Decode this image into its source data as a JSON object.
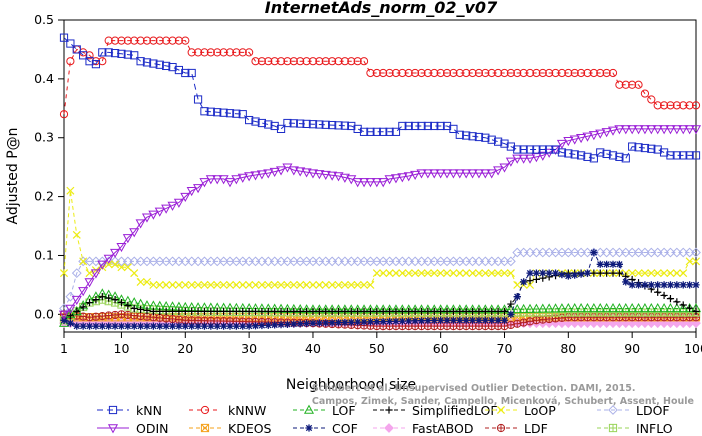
{
  "chart_data": {
    "type": "line",
    "title": "InternetAds_norm_02_v07",
    "xlabel": "Neighborhood size",
    "ylabel": "Adjusted P@n",
    "xlim": [
      1,
      100
    ],
    "ylim": [
      -0.03,
      0.5
    ],
    "xticks": [
      1,
      10,
      20,
      30,
      40,
      50,
      60,
      70,
      80,
      90,
      100
    ],
    "yticks": [
      0.0,
      0.1,
      0.2,
      0.3,
      0.4,
      0.5
    ],
    "grid": false,
    "legend_position": "bottom",
    "series": [
      {
        "name": "kNN",
        "color": "#1c2bc7",
        "marker": "square",
        "dash": "6,4",
        "points": [
          [
            1,
            0.47
          ],
          [
            2,
            0.46
          ],
          [
            3,
            0.45
          ],
          [
            4,
            0.44
          ],
          [
            5,
            0.43
          ],
          [
            6,
            0.425
          ],
          [
            7,
            0.445
          ],
          [
            8,
            0.445
          ],
          [
            12,
            0.44
          ],
          [
            13,
            0.43
          ],
          [
            18,
            0.42
          ],
          [
            19,
            0.415
          ],
          [
            20,
            0.41
          ],
          [
            21,
            0.41
          ],
          [
            22,
            0.365
          ],
          [
            23,
            0.345
          ],
          [
            29,
            0.34
          ],
          [
            30,
            0.33
          ],
          [
            32,
            0.325
          ],
          [
            34,
            0.32
          ],
          [
            35,
            0.315
          ],
          [
            36,
            0.325
          ],
          [
            46,
            0.32
          ],
          [
            47,
            0.315
          ],
          [
            48,
            0.31
          ],
          [
            53,
            0.31
          ],
          [
            54,
            0.32
          ],
          [
            61,
            0.32
          ],
          [
            62,
            0.315
          ],
          [
            63,
            0.305
          ],
          [
            67,
            0.3
          ],
          [
            70,
            0.29
          ],
          [
            72,
            0.28
          ],
          [
            78,
            0.28
          ],
          [
            79,
            0.275
          ],
          [
            82,
            0.27
          ],
          [
            84,
            0.265
          ],
          [
            85,
            0.275
          ],
          [
            87,
            0.27
          ],
          [
            89,
            0.265
          ],
          [
            90,
            0.285
          ],
          [
            94,
            0.28
          ],
          [
            96,
            0.27
          ],
          [
            100,
            0.27
          ]
        ]
      },
      {
        "name": "kNNW",
        "color": "#e8191c",
        "marker": "circle",
        "dash": "4,4",
        "points": [
          [
            1,
            0.34
          ],
          [
            2,
            0.43
          ],
          [
            3,
            0.45
          ],
          [
            4,
            0.445
          ],
          [
            5,
            0.44
          ],
          [
            6,
            0.43
          ],
          [
            7,
            0.43
          ],
          [
            8,
            0.465
          ],
          [
            20,
            0.465
          ],
          [
            21,
            0.445
          ],
          [
            30,
            0.445
          ],
          [
            31,
            0.43
          ],
          [
            48,
            0.43
          ],
          [
            49,
            0.41
          ],
          [
            87,
            0.41
          ],
          [
            88,
            0.39
          ],
          [
            91,
            0.39
          ],
          [
            92,
            0.375
          ],
          [
            94,
            0.355
          ],
          [
            100,
            0.355
          ]
        ]
      },
      {
        "name": "LOF",
        "color": "#22b222",
        "marker": "triangle-up",
        "dash": "4,3",
        "points": [
          [
            1,
            -0.015
          ],
          [
            2,
            0.0
          ],
          [
            3,
            0.005
          ],
          [
            4,
            0.015
          ],
          [
            5,
            0.025
          ],
          [
            6,
            0.03
          ],
          [
            7,
            0.035
          ],
          [
            8,
            0.033
          ],
          [
            9,
            0.03
          ],
          [
            10,
            0.025
          ],
          [
            12,
            0.02
          ],
          [
            14,
            0.015
          ],
          [
            20,
            0.012
          ],
          [
            30,
            0.01
          ],
          [
            40,
            0.008
          ],
          [
            50,
            0.008
          ],
          [
            60,
            0.008
          ],
          [
            70,
            0.008
          ],
          [
            80,
            0.01
          ],
          [
            90,
            0.01
          ],
          [
            100,
            0.01
          ]
        ]
      },
      {
        "name": "SimplifiedLOF",
        "color": "#000000",
        "marker": "plus",
        "dash": "4,3",
        "points": [
          [
            1,
            -0.01
          ],
          [
            3,
            0.005
          ],
          [
            5,
            0.02
          ],
          [
            7,
            0.03
          ],
          [
            9,
            0.025
          ],
          [
            12,
            0.01
          ],
          [
            15,
            0.005
          ],
          [
            25,
            0.005
          ],
          [
            40,
            0.005
          ],
          [
            60,
            0.005
          ],
          [
            70,
            0.005
          ],
          [
            72,
            0.03
          ],
          [
            73,
            0.055
          ],
          [
            80,
            0.07
          ],
          [
            85,
            0.07
          ],
          [
            88,
            0.07
          ],
          [
            100,
            0.005
          ]
        ]
      },
      {
        "name": "LoOP",
        "color": "#ecec14",
        "marker": "x",
        "dash": "4,3",
        "points": [
          [
            1,
            0.07
          ],
          [
            2,
            0.21
          ],
          [
            3,
            0.135
          ],
          [
            4,
            0.09
          ],
          [
            5,
            0.07
          ],
          [
            8,
            0.085
          ],
          [
            9,
            0.085
          ],
          [
            10,
            0.08
          ],
          [
            11,
            0.08
          ],
          [
            12,
            0.07
          ],
          [
            13,
            0.055
          ],
          [
            14,
            0.055
          ],
          [
            15,
            0.05
          ],
          [
            49,
            0.05
          ],
          [
            50,
            0.07
          ],
          [
            71,
            0.07
          ],
          [
            72,
            0.05
          ],
          [
            74,
            0.05
          ],
          [
            75,
            0.07
          ],
          [
            98,
            0.07
          ],
          [
            99,
            0.09
          ],
          [
            100,
            0.09
          ]
        ]
      },
      {
        "name": "LDOF",
        "color": "#aab0e8",
        "marker": "diamond",
        "dash": "4,3",
        "points": [
          [
            1,
            0.01
          ],
          [
            2,
            0.03
          ],
          [
            3,
            0.07
          ],
          [
            4,
            0.09
          ],
          [
            70,
            0.09
          ],
          [
            71,
            0.09
          ],
          [
            72,
            0.105
          ],
          [
            100,
            0.105
          ]
        ]
      },
      {
        "name": "ODIN",
        "color": "#9a1fd6",
        "marker": "triangle-down",
        "dash": "0",
        "points": [
          [
            1,
            0.0
          ],
          [
            2,
            0.01
          ],
          [
            3,
            0.025
          ],
          [
            4,
            0.04
          ],
          [
            5,
            0.055
          ],
          [
            6,
            0.07
          ],
          [
            7,
            0.085
          ],
          [
            8,
            0.095
          ],
          [
            9,
            0.105
          ],
          [
            10,
            0.115
          ],
          [
            11,
            0.13
          ],
          [
            12,
            0.14
          ],
          [
            13,
            0.155
          ],
          [
            14,
            0.165
          ],
          [
            15,
            0.17
          ],
          [
            16,
            0.175
          ],
          [
            17,
            0.18
          ],
          [
            18,
            0.185
          ],
          [
            19,
            0.19
          ],
          [
            20,
            0.2
          ],
          [
            21,
            0.21
          ],
          [
            22,
            0.215
          ],
          [
            23,
            0.225
          ],
          [
            24,
            0.23
          ],
          [
            26,
            0.23
          ],
          [
            27,
            0.225
          ],
          [
            28,
            0.23
          ],
          [
            30,
            0.235
          ],
          [
            33,
            0.24
          ],
          [
            35,
            0.245
          ],
          [
            36,
            0.25
          ],
          [
            37,
            0.245
          ],
          [
            40,
            0.24
          ],
          [
            44,
            0.235
          ],
          [
            46,
            0.23
          ],
          [
            47,
            0.225
          ],
          [
            51,
            0.225
          ],
          [
            52,
            0.23
          ],
          [
            55,
            0.235
          ],
          [
            57,
            0.24
          ],
          [
            68,
            0.24
          ],
          [
            69,
            0.245
          ],
          [
            70,
            0.25
          ],
          [
            71,
            0.26
          ],
          [
            72,
            0.265
          ],
          [
            74,
            0.265
          ],
          [
            76,
            0.27
          ],
          [
            78,
            0.28
          ],
          [
            79,
            0.29
          ],
          [
            80,
            0.295
          ],
          [
            82,
            0.3
          ],
          [
            84,
            0.305
          ],
          [
            86,
            0.31
          ],
          [
            88,
            0.315
          ],
          [
            100,
            0.315
          ]
        ]
      },
      {
        "name": "KDEOS",
        "color": "#f5a01a",
        "marker": "square-x",
        "dash": "4,3",
        "points": [
          [
            1,
            -0.005
          ],
          [
            10,
            -0.005
          ],
          [
            30,
            -0.005
          ],
          [
            50,
            -0.005
          ],
          [
            70,
            -0.005
          ],
          [
            90,
            -0.005
          ],
          [
            100,
            -0.005
          ]
        ]
      },
      {
        "name": "COF",
        "color": "#0d1a7a",
        "marker": "star",
        "dash": "4,3",
        "points": [
          [
            1,
            -0.01
          ],
          [
            2,
            -0.015
          ],
          [
            3,
            -0.02
          ],
          [
            30,
            -0.02
          ],
          [
            40,
            -0.015
          ],
          [
            60,
            -0.01
          ],
          [
            70,
            -0.01
          ],
          [
            71,
            0.0
          ],
          [
            72,
            0.03
          ],
          [
            73,
            0.055
          ],
          [
            74,
            0.07
          ],
          [
            78,
            0.07
          ],
          [
            80,
            0.065
          ],
          [
            83,
            0.07
          ],
          [
            84,
            0.105
          ],
          [
            85,
            0.085
          ],
          [
            88,
            0.085
          ],
          [
            89,
            0.055
          ],
          [
            90,
            0.05
          ],
          [
            100,
            0.05
          ]
        ]
      },
      {
        "name": "FastABOD",
        "color": "#f4a6ec",
        "marker": "diamond-filled",
        "dash": "4,3",
        "points": [
          [
            1,
            -0.015
          ],
          [
            100,
            -0.015
          ]
        ]
      },
      {
        "name": "LDF",
        "color": "#b22222",
        "marker": "circle-plus",
        "dash": "4,3",
        "points": [
          [
            1,
            0.0
          ],
          [
            5,
            -0.005
          ],
          [
            10,
            0.0
          ],
          [
            20,
            -0.01
          ],
          [
            40,
            -0.015
          ],
          [
            50,
            -0.02
          ],
          [
            60,
            -0.02
          ],
          [
            70,
            -0.02
          ],
          [
            75,
            -0.01
          ],
          [
            80,
            -0.005
          ],
          [
            100,
            -0.005
          ]
        ]
      },
      {
        "name": "INFLO",
        "color": "#9ad45a",
        "marker": "square-plus",
        "dash": "4,3",
        "points": [
          [
            1,
            -0.01
          ],
          [
            3,
            0.005
          ],
          [
            5,
            0.02
          ],
          [
            7,
            0.025
          ],
          [
            9,
            0.02
          ],
          [
            12,
            0.01
          ],
          [
            20,
            0.005
          ],
          [
            40,
            0.003
          ],
          [
            60,
            0.003
          ],
          [
            80,
            0.003
          ],
          [
            100,
            0.003
          ]
        ]
      }
    ]
  },
  "watermark_lines": [
    "Schubert et al. Unsupervised Outlier Detection. DAMI, 2015.",
    "Campos, Zimek, Sander, Campello, Micenková, Schubert, Assent, Houle"
  ]
}
